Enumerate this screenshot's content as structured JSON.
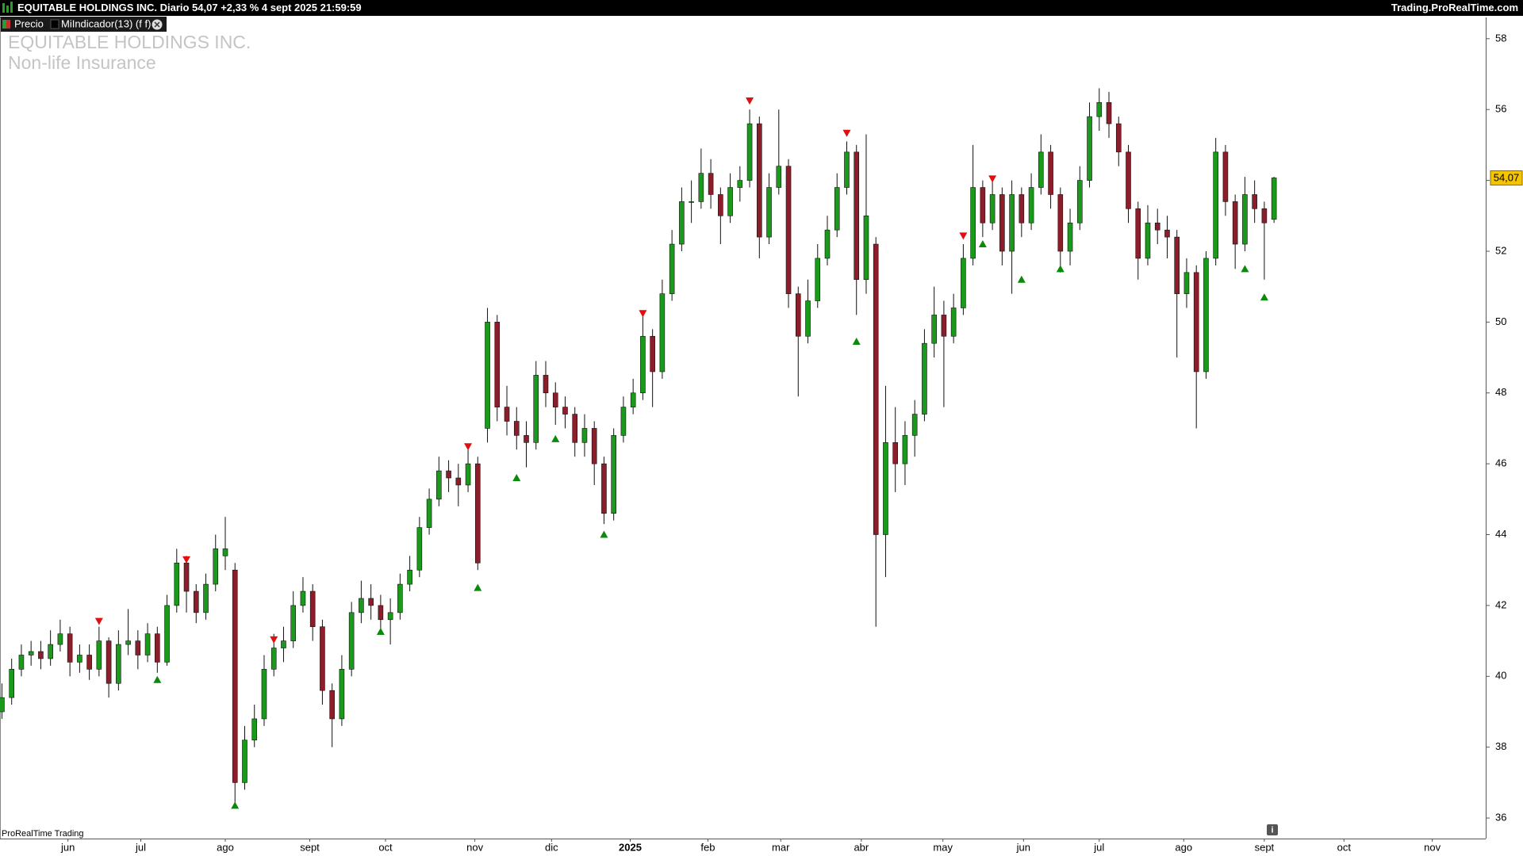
{
  "header": {
    "quote": "EQUITABLE HOLDINGS INC. Diario 54,07 +2,33 % 4 sept 2025 21:59:59",
    "site": "Trading.ProRealTime.com",
    "tabs": [
      "Precio",
      "MiIndicador(13) (f f)"
    ]
  },
  "footer": "ProRealTime Trading",
  "chart_data": {
    "type": "candlestick",
    "title": "EQUITABLE HOLDINGS INC.",
    "subtitle": "Non-life Insurance",
    "open": [
      39.0,
      39.4,
      40.2,
      40.6,
      40.7,
      40.5,
      40.9,
      41.2,
      40.4,
      40.6,
      40.2,
      41.0,
      39.8,
      40.9,
      41.0,
      40.6,
      41.2,
      40.4,
      42.0,
      43.2,
      42.4,
      41.8,
      42.6,
      43.4,
      43.0,
      37.0,
      38.2,
      38.8,
      40.2,
      40.8,
      41.0,
      42.0,
      42.4,
      41.4,
      39.6,
      38.8,
      40.2,
      41.8,
      42.2,
      42.0,
      41.6,
      41.8,
      42.6,
      43.0,
      44.2,
      45.0,
      45.8,
      45.6,
      45.4,
      46.0,
      47.0,
      50.0,
      47.6,
      47.2,
      46.8,
      46.6,
      48.5,
      48.0,
      47.6,
      47.4,
      46.6,
      47.0,
      46.0,
      44.6,
      46.8,
      47.6,
      48.0,
      49.6,
      48.6,
      50.8,
      52.2,
      53.4,
      53.4,
      54.2,
      53.6,
      53.0,
      53.8,
      54.0,
      55.6,
      52.4,
      53.8,
      54.4,
      50.8,
      49.6,
      50.6,
      51.8,
      52.6,
      53.8,
      54.8,
      51.2,
      52.2,
      44.0,
      46.6,
      46.0,
      46.8,
      47.4,
      49.4,
      50.2,
      49.6,
      50.4,
      51.8,
      53.8,
      52.8,
      53.6,
      52.0,
      53.6,
      52.8,
      53.8,
      54.8,
      53.6,
      52.0,
      52.8,
      54.0,
      55.8,
      56.2,
      55.6,
      54.8,
      53.2,
      51.8,
      52.8,
      52.6,
      52.4,
      50.8,
      51.4,
      48.6,
      51.8,
      54.8,
      53.4,
      52.2,
      53.6,
      53.2,
      52.9
    ],
    "high": [
      39.8,
      40.5,
      40.9,
      41.0,
      41.0,
      41.3,
      41.6,
      41.4,
      40.9,
      40.9,
      41.4,
      41.1,
      41.3,
      41.9,
      41.3,
      41.5,
      41.4,
      42.3,
      43.6,
      43.4,
      42.6,
      42.9,
      44.0,
      44.5,
      43.2,
      38.6,
      39.2,
      40.6,
      41.2,
      41.4,
      42.4,
      42.8,
      42.6,
      41.6,
      39.8,
      40.6,
      42.1,
      42.7,
      42.6,
      42.3,
      42.2,
      42.9,
      43.4,
      44.5,
      45.3,
      46.2,
      46.1,
      46.0,
      46.4,
      46.2,
      50.4,
      50.2,
      48.2,
      47.6,
      47.2,
      48.9,
      48.9,
      48.3,
      47.9,
      47.6,
      47.4,
      47.2,
      46.2,
      47.0,
      47.9,
      48.4,
      50.2,
      49.8,
      51.2,
      52.6,
      53.8,
      54.0,
      54.9,
      54.6,
      53.8,
      54.2,
      54.4,
      56.0,
      55.8,
      54.2,
      56.0,
      54.6,
      51.0,
      51.2,
      52.2,
      53.0,
      54.2,
      55.1,
      55.0,
      55.3,
      52.4,
      48.2,
      47.6,
      47.2,
      47.8,
      49.8,
      51.0,
      50.6,
      50.8,
      52.2,
      55.0,
      54.0,
      54.0,
      53.8,
      54.0,
      53.8,
      54.2,
      55.3,
      55.0,
      53.8,
      53.2,
      54.4,
      56.2,
      56.6,
      56.5,
      55.8,
      55.0,
      53.4,
      53.3,
      53.2,
      53.0,
      52.6,
      51.8,
      51.6,
      52.0,
      55.2,
      55.0,
      53.6,
      54.1,
      54.0,
      53.4,
      54.1
    ],
    "low": [
      38.8,
      39.2,
      40.0,
      40.3,
      40.2,
      40.3,
      40.7,
      40.0,
      40.1,
      39.9,
      40.0,
      39.4,
      39.6,
      40.6,
      40.2,
      40.4,
      40.1,
      40.3,
      41.8,
      41.8,
      41.5,
      41.6,
      42.4,
      43.0,
      36.4,
      36.8,
      38.0,
      38.6,
      40.0,
      40.4,
      40.8,
      41.8,
      41.0,
      39.2,
      38.0,
      38.6,
      40.0,
      41.5,
      41.6,
      41.2,
      40.9,
      41.6,
      42.4,
      42.8,
      44.0,
      44.8,
      45.2,
      44.8,
      45.2,
      43.0,
      46.6,
      47.2,
      46.8,
      46.4,
      45.9,
      46.4,
      47.6,
      47.1,
      47.0,
      46.2,
      46.2,
      45.4,
      44.3,
      44.4,
      46.6,
      47.4,
      47.8,
      47.6,
      48.4,
      50.6,
      52.0,
      52.8,
      53.2,
      53.2,
      52.2,
      52.8,
      53.4,
      53.8,
      51.8,
      52.2,
      53.6,
      50.4,
      47.9,
      49.4,
      50.4,
      51.6,
      52.4,
      53.6,
      50.2,
      50.8,
      41.4,
      42.8,
      45.2,
      45.4,
      46.2,
      47.2,
      49.0,
      47.6,
      49.4,
      50.2,
      51.6,
      52.4,
      52.6,
      51.6,
      50.8,
      52.4,
      52.6,
      53.6,
      53.2,
      51.4,
      51.6,
      52.6,
      53.8,
      55.4,
      55.2,
      54.4,
      52.8,
      51.2,
      51.6,
      52.2,
      51.8,
      49.0,
      50.4,
      47.0,
      48.4,
      51.6,
      53.0,
      51.5,
      52.0,
      52.8,
      51.2,
      52.8
    ],
    "close": [
      39.4,
      40.2,
      40.6,
      40.7,
      40.5,
      40.9,
      41.2,
      40.4,
      40.6,
      40.2,
      41.0,
      39.8,
      40.9,
      41.0,
      40.6,
      41.2,
      40.4,
      42.0,
      43.2,
      42.4,
      41.8,
      42.6,
      43.6,
      43.6,
      37.0,
      38.2,
      38.8,
      40.2,
      40.8,
      41.0,
      42.0,
      42.4,
      41.4,
      39.6,
      38.8,
      40.2,
      41.8,
      42.2,
      42.0,
      41.6,
      41.8,
      42.6,
      43.0,
      44.2,
      45.0,
      45.8,
      45.6,
      45.4,
      46.0,
      43.2,
      50.0,
      47.6,
      47.2,
      46.8,
      46.6,
      48.5,
      48.0,
      47.6,
      47.4,
      46.6,
      47.0,
      46.0,
      44.6,
      46.8,
      47.6,
      48.0,
      49.6,
      48.6,
      50.8,
      52.2,
      53.4,
      53.4,
      54.2,
      53.6,
      53.0,
      53.8,
      54.0,
      55.6,
      52.4,
      53.8,
      54.4,
      50.8,
      49.6,
      50.6,
      51.8,
      52.6,
      53.8,
      54.8,
      51.2,
      53.0,
      44.0,
      46.6,
      46.0,
      46.8,
      47.4,
      49.4,
      50.2,
      49.6,
      50.4,
      51.8,
      53.8,
      52.8,
      53.6,
      52.0,
      53.6,
      52.8,
      53.8,
      54.8,
      53.6,
      52.0,
      52.8,
      54.0,
      55.8,
      56.2,
      55.6,
      54.8,
      53.2,
      51.8,
      52.8,
      52.6,
      52.4,
      50.8,
      51.4,
      48.6,
      51.8,
      54.8,
      53.4,
      52.2,
      53.6,
      53.2,
      52.8,
      54.07
    ],
    "up_color": "#1a9a1a",
    "down_color": "#8b1e2a",
    "wick_color": "#111111",
    "xlim": [
      -0.2,
      152.8
    ],
    "xticks": [
      {
        "value": 6.8,
        "label": "jun"
      },
      {
        "value": 14.3,
        "label": "jul"
      },
      {
        "value": 23,
        "label": "ago"
      },
      {
        "value": 31.7,
        "label": "sept"
      },
      {
        "value": 39.5,
        "label": "oct"
      },
      {
        "value": 48.7,
        "label": "nov"
      },
      {
        "value": 56.6,
        "label": "dic"
      },
      {
        "value": 64.7,
        "label": "2025"
      },
      {
        "value": 72.7,
        "label": "feb"
      },
      {
        "value": 80.2,
        "label": "mar"
      },
      {
        "value": 88.5,
        "label": "abr"
      },
      {
        "value": 96.9,
        "label": "may"
      },
      {
        "value": 105.2,
        "label": "jun"
      },
      {
        "value": 113,
        "label": "jul"
      },
      {
        "value": 121.7,
        "label": "ago"
      },
      {
        "value": 130,
        "label": "sept"
      },
      {
        "value": 138.2,
        "label": "oct"
      },
      {
        "value": 147.3,
        "label": "nov"
      }
    ],
    "ylim": [
      35.42,
      58.6
    ],
    "yticks": [
      36,
      38,
      40,
      42,
      44,
      46,
      48,
      50,
      52,
      54,
      56,
      58
    ],
    "last_price": {
      "value": 54.07,
      "label": "54,07"
    },
    "signals": {
      "sell": {
        "color": "#e01010",
        "x": [
          10,
          19,
          28,
          48,
          66,
          77,
          87,
          99,
          102
        ],
        "y": [
          41.56,
          43.3,
          41.04,
          46.49,
          50.25,
          56.25,
          55.34,
          52.44,
          54.05
        ]
      },
      "buy": {
        "color": "#0a8a0a",
        "x": [
          16,
          24,
          39,
          49,
          53,
          57,
          62,
          88,
          101,
          105,
          109,
          128,
          130
        ],
        "y": [
          39.9,
          36.35,
          41.26,
          42.5,
          45.6,
          46.7,
          44.0,
          49.45,
          52.2,
          51.2,
          51.5,
          51.5,
          50.7
        ]
      }
    }
  }
}
